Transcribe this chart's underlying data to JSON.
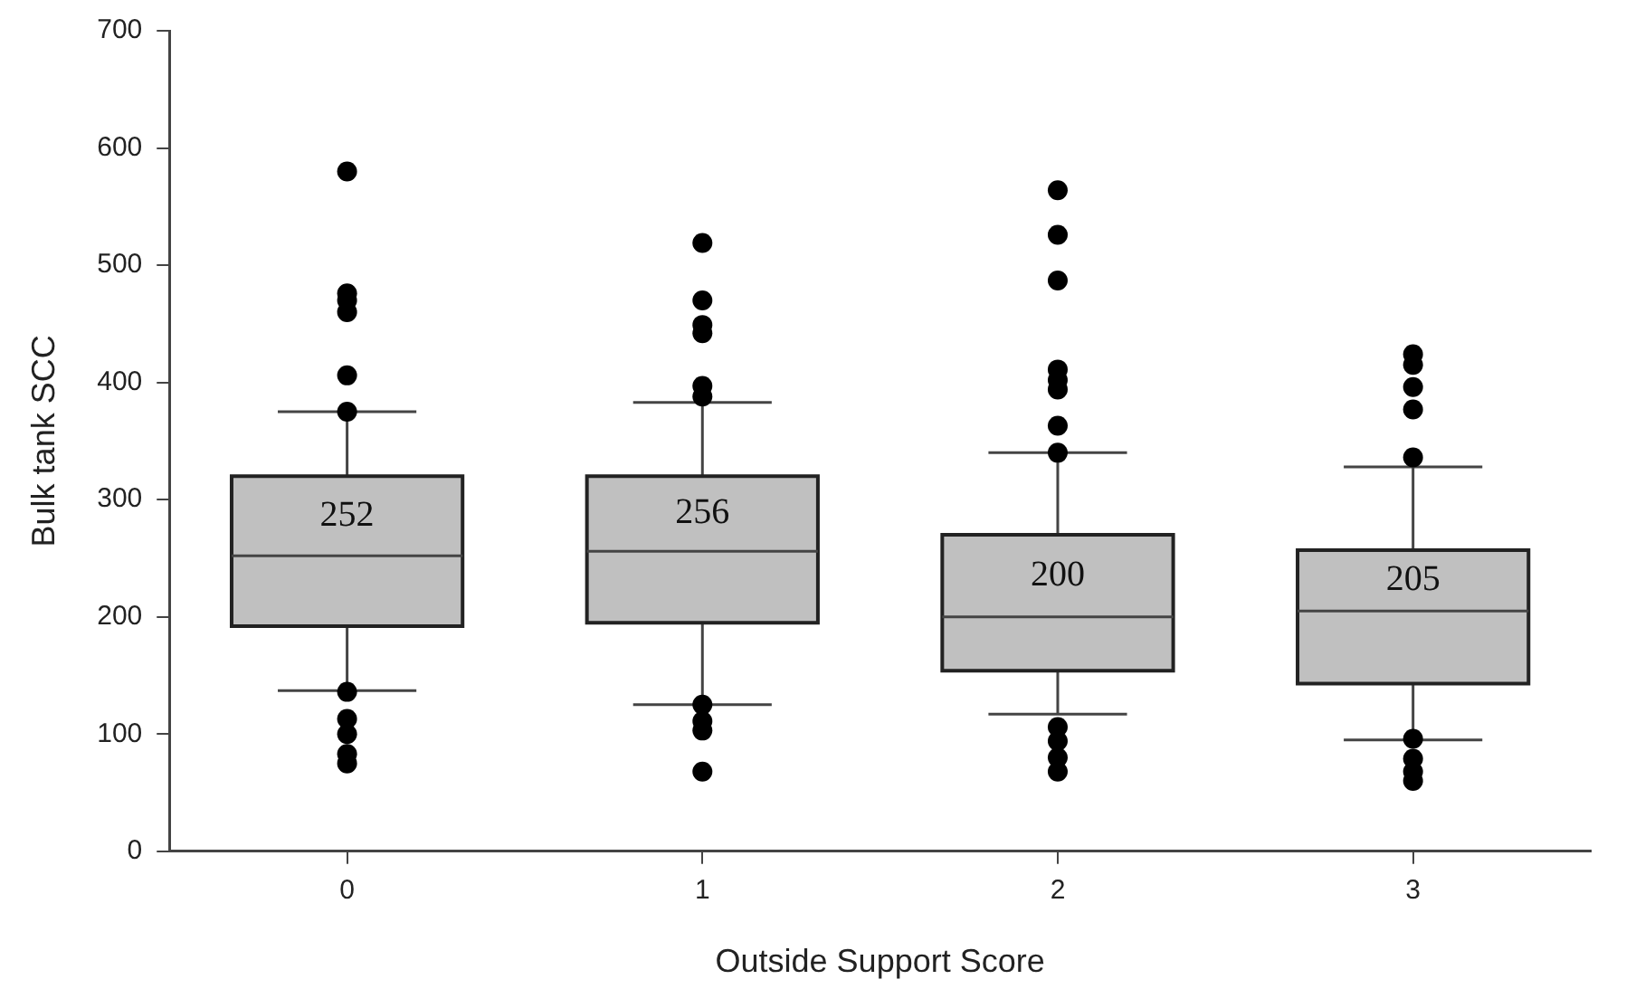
{
  "chart_data": {
    "type": "box",
    "xlabel": "Outside Support Score",
    "ylabel": "Bulk tank SCC",
    "categories": [
      "0",
      "1",
      "2",
      "3"
    ],
    "color": "#c0c0c0",
    "ylim": [
      0,
      700
    ],
    "yticks": [
      0,
      100,
      200,
      300,
      400,
      500,
      600,
      700
    ],
    "grid": false,
    "legend": false,
    "value_labels": [
      "252",
      "256",
      "200",
      "205"
    ],
    "marker": "circle",
    "boxes": [
      {
        "low": 137,
        "q1": 192,
        "median": 252,
        "q3": 320,
        "high": 375,
        "outliers": [
          580,
          476,
          470,
          460,
          406,
          375,
          136,
          113,
          100,
          83,
          75
        ]
      },
      {
        "low": 125,
        "q1": 195,
        "median": 256,
        "q3": 320,
        "high": 383,
        "outliers": [
          519,
          470,
          449,
          442,
          397,
          388,
          125,
          111,
          103,
          68
        ]
      },
      {
        "low": 117,
        "q1": 154,
        "median": 200,
        "q3": 270,
        "high": 340,
        "outliers": [
          564,
          526,
          487,
          411,
          402,
          394,
          363,
          340,
          106,
          94,
          80,
          68
        ]
      },
      {
        "low": 95,
        "q1": 143,
        "median": 205,
        "q3": 257,
        "high": 328,
        "outliers": [
          424,
          415,
          396,
          377,
          336,
          96,
          79,
          68,
          60
        ]
      }
    ]
  }
}
